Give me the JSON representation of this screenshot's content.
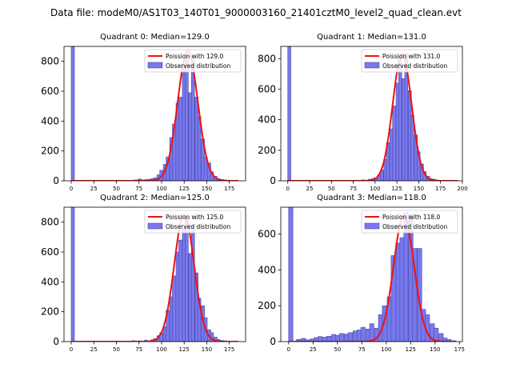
{
  "figure": {
    "suptitle": "Data file: modeM0/AS1T03_140T01_9000003160_21401cztM0_level2_quad_clean.evt"
  },
  "chart_data": [
    {
      "type": "bar",
      "title": "Quadrant 0: Median=129.0",
      "xlim": [
        -8,
        193
      ],
      "ylim": [
        0,
        900
      ],
      "xticks": [
        0,
        25,
        50,
        75,
        100,
        125,
        150,
        175
      ],
      "yticks": [
        0,
        200,
        400,
        600,
        800
      ],
      "bin_width": 3.5,
      "bins": [
        [
          0,
          900
        ],
        [
          67,
          4
        ],
        [
          70,
          6
        ],
        [
          74,
          12
        ],
        [
          77,
          6
        ],
        [
          81,
          8
        ],
        [
          84,
          10
        ],
        [
          88,
          14
        ],
        [
          91,
          20
        ],
        [
          95,
          40
        ],
        [
          98,
          70
        ],
        [
          102,
          110
        ],
        [
          105,
          160
        ],
        [
          109,
          290
        ],
        [
          112,
          380
        ],
        [
          116,
          520
        ],
        [
          119,
          560
        ],
        [
          123,
          780
        ],
        [
          126,
          840
        ],
        [
          130,
          590
        ],
        [
          133,
          810
        ],
        [
          137,
          560
        ],
        [
          140,
          430
        ],
        [
          144,
          280
        ],
        [
          147,
          160
        ],
        [
          151,
          120
        ],
        [
          154,
          60
        ],
        [
          158,
          30
        ],
        [
          161,
          15
        ],
        [
          165,
          10
        ],
        [
          168,
          6
        ],
        [
          172,
          4
        ],
        [
          175,
          3
        ],
        [
          179,
          2
        ]
      ],
      "fit": {
        "mu": 129,
        "sigma": 11.2,
        "amp": 870,
        "range": [
          0,
          185
        ]
      },
      "legend": {
        "fit_label": "Poission with 129.0",
        "obs_label": "Observed distribution"
      }
    },
    {
      "type": "bar",
      "title": "Quadrant 1: Median=131.0",
      "xlim": [
        -8,
        200
      ],
      "ylim": [
        0,
        880
      ],
      "xticks": [
        0,
        25,
        50,
        75,
        100,
        125,
        150,
        175,
        200
      ],
      "yticks": [
        0,
        200,
        400,
        600,
        800
      ],
      "bin_width": 3.5,
      "bins": [
        [
          0,
          880
        ],
        [
          78,
          3
        ],
        [
          85,
          6
        ],
        [
          92,
          10
        ],
        [
          96,
          15
        ],
        [
          99,
          20
        ],
        [
          103,
          40
        ],
        [
          106,
          70
        ],
        [
          110,
          140
        ],
        [
          113,
          250
        ],
        [
          117,
          340
        ],
        [
          120,
          490
        ],
        [
          124,
          640
        ],
        [
          127,
          820
        ],
        [
          131,
          670
        ],
        [
          134,
          830
        ],
        [
          138,
          590
        ],
        [
          141,
          430
        ],
        [
          145,
          300
        ],
        [
          148,
          190
        ],
        [
          152,
          110
        ],
        [
          155,
          60
        ],
        [
          159,
          30
        ],
        [
          162,
          15
        ],
        [
          166,
          10
        ],
        [
          169,
          5
        ],
        [
          176,
          3
        ]
      ],
      "fit": {
        "mu": 131,
        "sigma": 10.8,
        "amp": 830,
        "range": [
          0,
          195
        ]
      },
      "legend": {
        "fit_label": "Poission with 131.0",
        "obs_label": "Observed distribution"
      }
    },
    {
      "type": "bar",
      "title": "Quadrant 2: Median=125.0",
      "xlim": [
        -8,
        193
      ],
      "ylim": [
        0,
        900
      ],
      "xticks": [
        0,
        25,
        50,
        75,
        100,
        125,
        150,
        175
      ],
      "yticks": [
        0,
        200,
        400,
        600,
        800
      ],
      "bin_width": 3.5,
      "bins": [
        [
          0,
          900
        ],
        [
          67,
          6
        ],
        [
          74,
          5
        ],
        [
          81,
          10
        ],
        [
          88,
          12
        ],
        [
          91,
          20
        ],
        [
          95,
          40
        ],
        [
          98,
          60
        ],
        [
          102,
          100
        ],
        [
          105,
          210
        ],
        [
          109,
          300
        ],
        [
          112,
          440
        ],
        [
          116,
          600
        ],
        [
          119,
          680
        ],
        [
          123,
          760
        ],
        [
          126,
          830
        ],
        [
          130,
          590
        ],
        [
          133,
          780
        ],
        [
          137,
          460
        ],
        [
          140,
          290
        ],
        [
          144,
          240
        ],
        [
          147,
          160
        ],
        [
          151,
          80
        ],
        [
          154,
          60
        ],
        [
          158,
          30
        ],
        [
          161,
          15
        ],
        [
          165,
          8
        ],
        [
          168,
          5
        ],
        [
          172,
          4
        ],
        [
          175,
          3
        ]
      ],
      "fit": {
        "mu": 125,
        "sigma": 11,
        "amp": 850,
        "range": [
          0,
          185
        ]
      },
      "legend": {
        "fit_label": "Poission with 125.0",
        "obs_label": "Observed distribution"
      }
    },
    {
      "type": "bar",
      "title": "Quadrant 3: Median=118.0",
      "xlim": [
        -8,
        178
      ],
      "ylim": [
        0,
        750
      ],
      "xticks": [
        0,
        25,
        50,
        75,
        100,
        125,
        150,
        175
      ],
      "yticks": [
        0,
        200,
        400,
        600
      ],
      "bin_width": 4.4,
      "bins": [
        [
          0,
          750
        ],
        [
          8,
          12
        ],
        [
          13,
          18
        ],
        [
          17,
          10
        ],
        [
          22,
          15
        ],
        [
          26,
          22
        ],
        [
          30,
          28
        ],
        [
          35,
          25
        ],
        [
          39,
          30
        ],
        [
          44,
          40
        ],
        [
          48,
          35
        ],
        [
          52,
          45
        ],
        [
          57,
          42
        ],
        [
          61,
          50
        ],
        [
          66,
          60
        ],
        [
          70,
          65
        ],
        [
          74,
          80
        ],
        [
          79,
          70
        ],
        [
          83,
          100
        ],
        [
          88,
          75
        ],
        [
          92,
          150
        ],
        [
          96,
          200
        ],
        [
          101,
          250
        ],
        [
          105,
          480
        ],
        [
          110,
          550
        ],
        [
          114,
          580
        ],
        [
          118,
          720
        ],
        [
          123,
          710
        ],
        [
          127,
          520
        ],
        [
          132,
          520
        ],
        [
          136,
          180
        ],
        [
          140,
          150
        ],
        [
          145,
          100
        ],
        [
          149,
          75
        ],
        [
          154,
          45
        ],
        [
          158,
          20
        ],
        [
          162,
          12
        ],
        [
          167,
          5
        ]
      ],
      "fit": {
        "mu": 118,
        "sigma": 10.5,
        "amp": 700,
        "range": [
          0,
          170
        ]
      },
      "legend": {
        "fit_label": "Poission with 118.0",
        "obs_label": "Observed distribution"
      }
    }
  ]
}
